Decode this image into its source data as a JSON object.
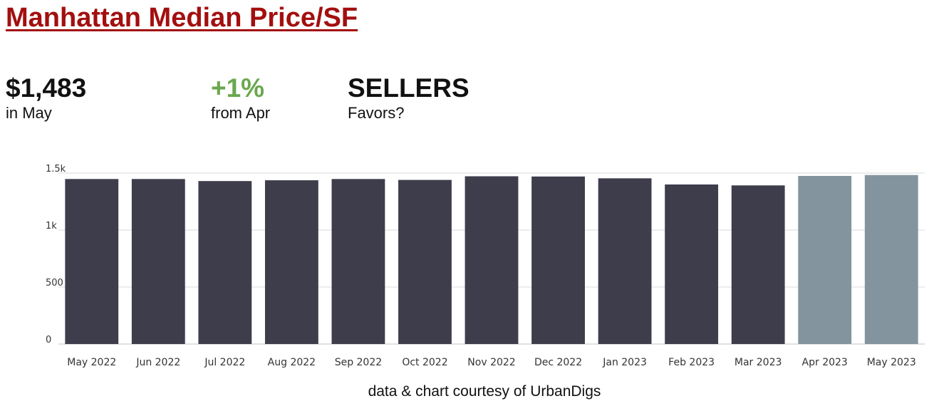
{
  "header": {
    "title": "Manhattan Median Price/SF"
  },
  "stats": {
    "price": {
      "value": "$1,483",
      "label": "in May"
    },
    "change": {
      "value": "+1%",
      "label": "from Apr",
      "color": "#6aa84f"
    },
    "favors": {
      "value": "SELLERS",
      "label": "Favors?"
    }
  },
  "colors": {
    "title": "#a30f0f",
    "bar_dark": "#3e3d4c",
    "bar_light": "#83949f",
    "grid": "#d9d9d9",
    "axis_text": "#333333"
  },
  "chart_data": {
    "type": "bar",
    "categories": [
      "May 2022",
      "Jun 2022",
      "Jul 2022",
      "Aug 2022",
      "Sep 2022",
      "Oct 2022",
      "Nov 2022",
      "Dec 2022",
      "Jan 2023",
      "Feb 2023",
      "Mar 2023",
      "Apr 2023",
      "May 2023"
    ],
    "values": [
      1448,
      1448,
      1430,
      1437,
      1448,
      1440,
      1472,
      1470,
      1454,
      1400,
      1392,
      1475,
      1483
    ],
    "highlight_indices": [
      11,
      12
    ],
    "ylim": [
      0,
      1500
    ],
    "yticks": [
      {
        "value": 0,
        "label": "0"
      },
      {
        "value": 500,
        "label": "500"
      },
      {
        "value": 1000,
        "label": "1k"
      },
      {
        "value": 1500,
        "label": "1.5k"
      }
    ],
    "grid": true,
    "xlabel": "",
    "ylabel": ""
  },
  "footer": {
    "credit": "data & chart courtesy of UrbanDigs"
  }
}
